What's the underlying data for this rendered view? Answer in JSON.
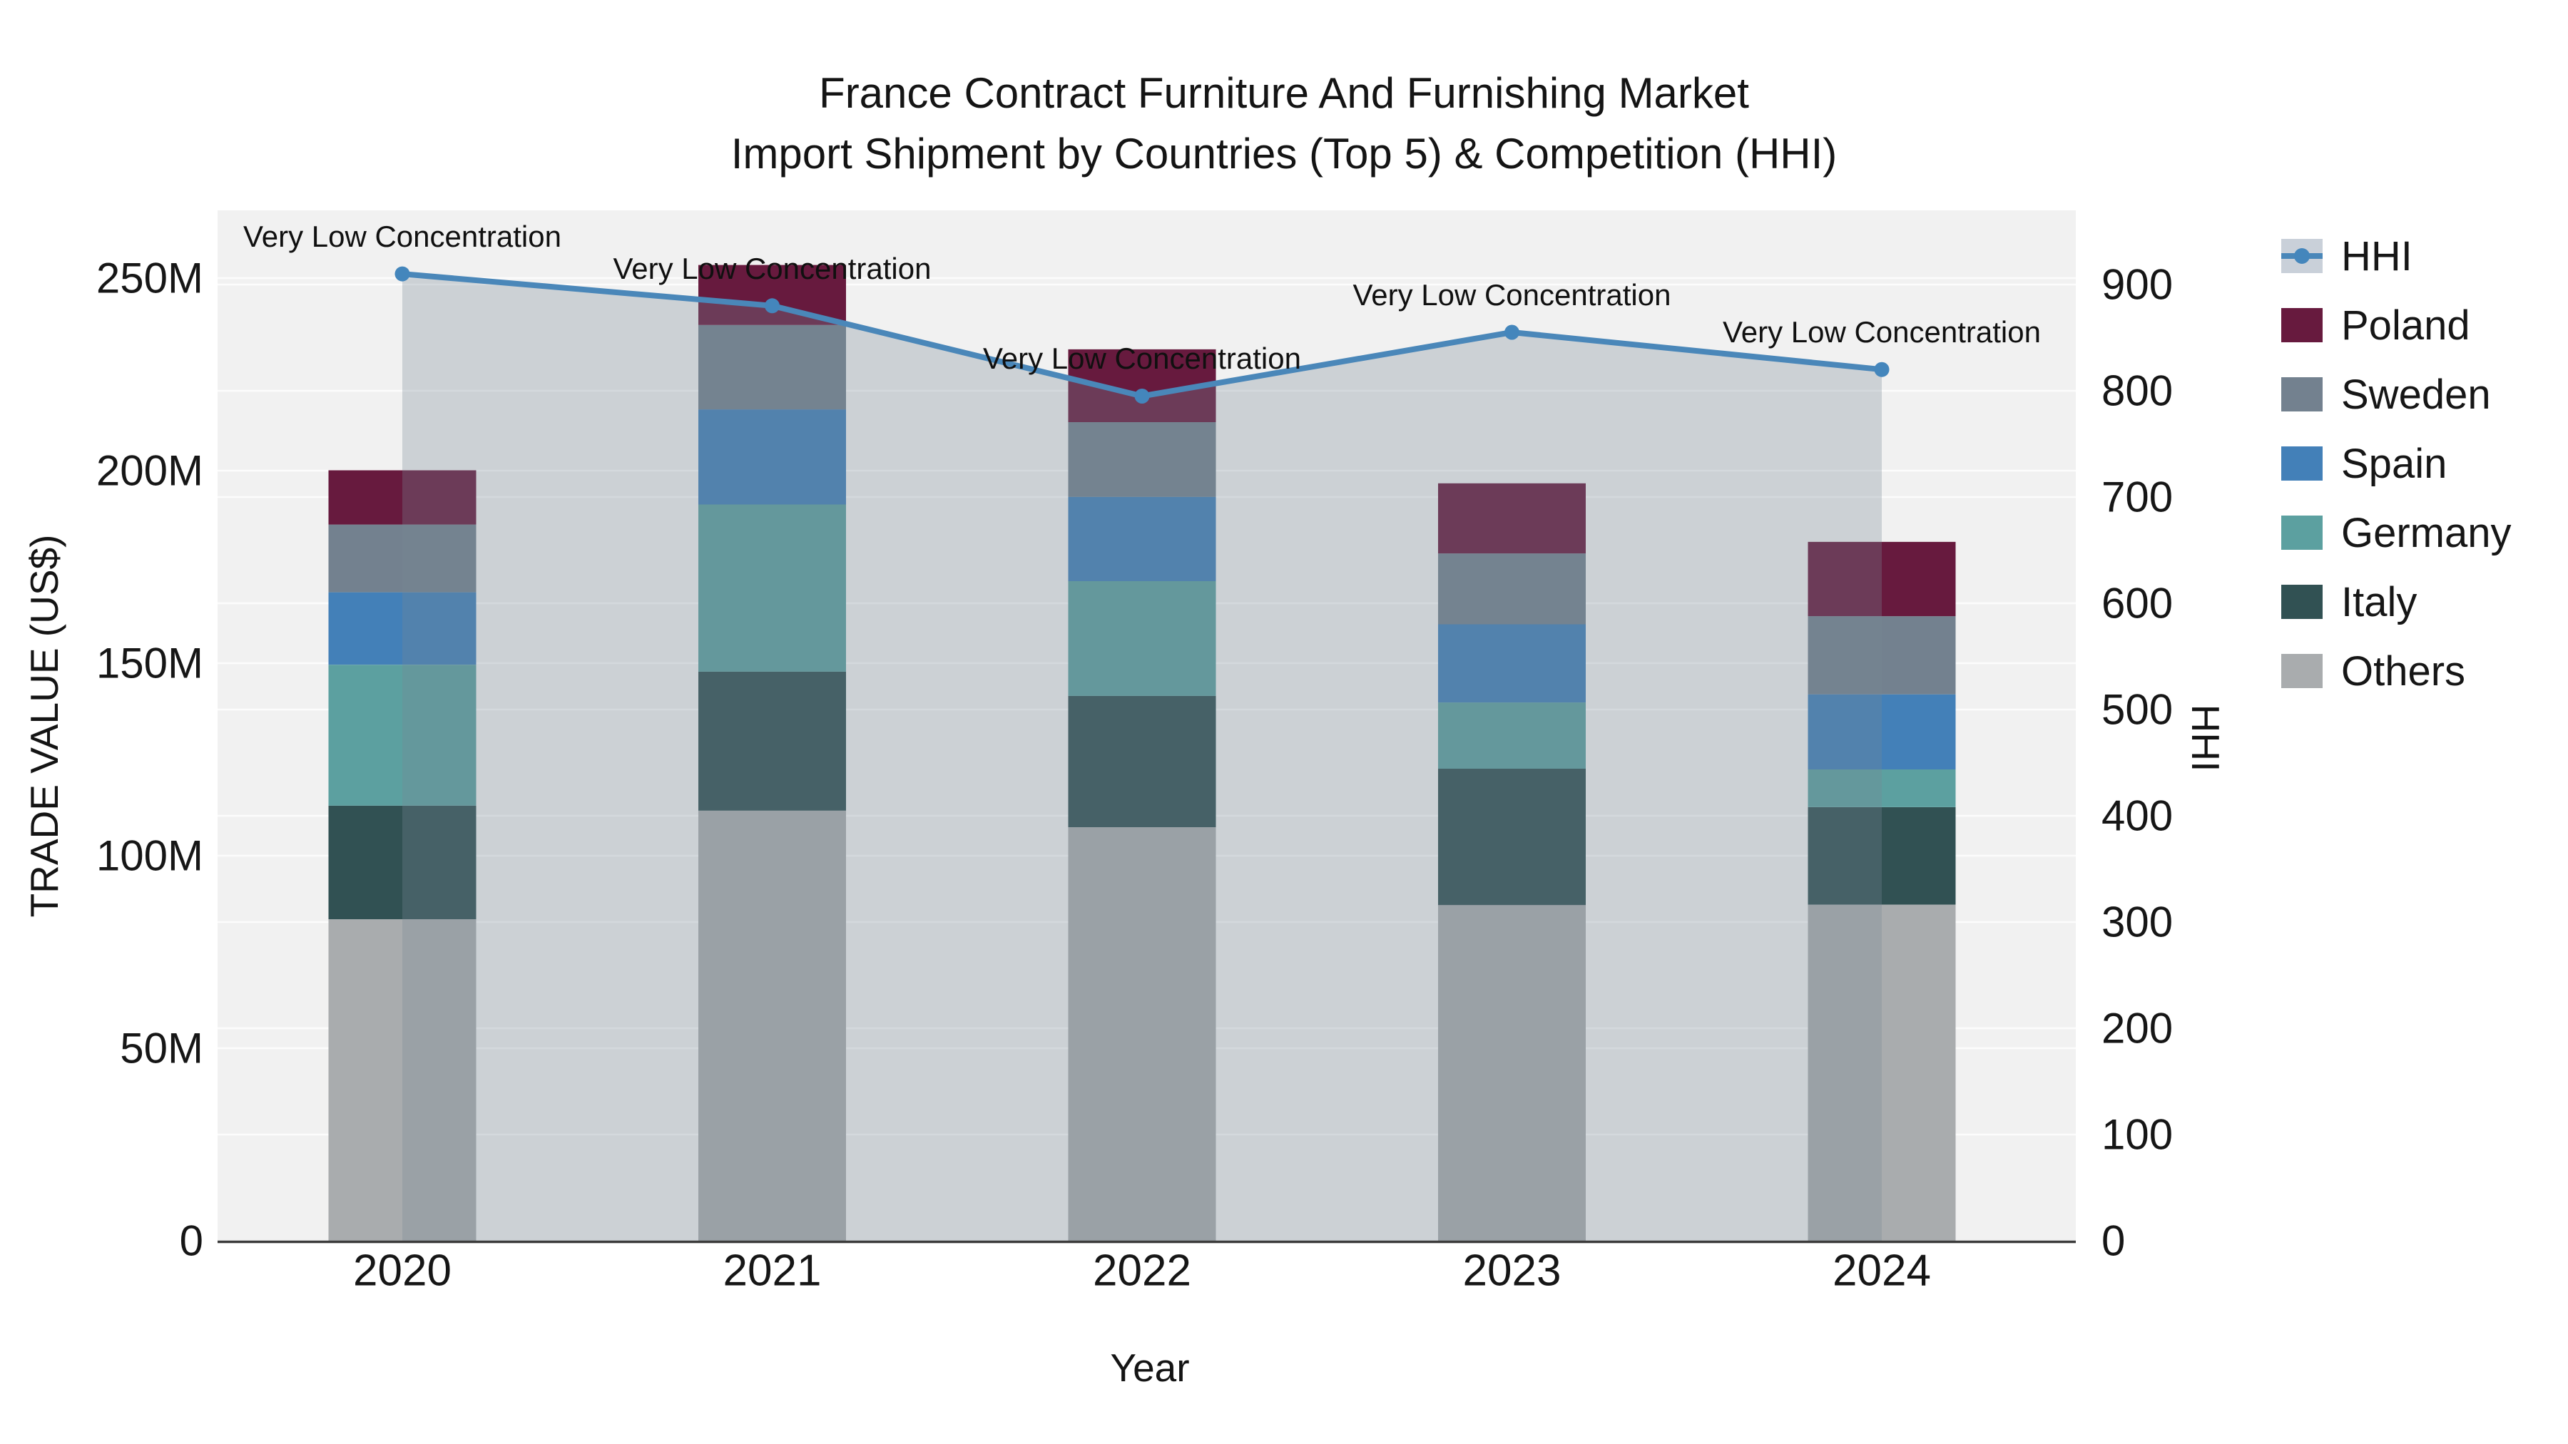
{
  "title": {
    "line1": "France Contract Furniture And Furnishing Market",
    "line2": "Import Shipment by Countries (Top 5) & Competition (HHI)"
  },
  "axes": {
    "x": {
      "title": "Year",
      "categories": [
        "2020",
        "2021",
        "2022",
        "2023",
        "2024"
      ]
    },
    "y_left": {
      "title": "TRADE VALUE (US$)",
      "tick_labels": [
        "0",
        "50M",
        "100M",
        "150M",
        "200M",
        "250M"
      ],
      "tick_values_musd": [
        0,
        50,
        100,
        150,
        200,
        250
      ]
    },
    "y_right": {
      "title": "HHI",
      "tick_labels": [
        "0",
        "100",
        "200",
        "300",
        "400",
        "500",
        "600",
        "700",
        "800",
        "900"
      ],
      "tick_values": [
        0,
        100,
        200,
        300,
        400,
        500,
        600,
        700,
        800,
        900
      ]
    }
  },
  "chart_data": {
    "type": "combo: stacked bar (left axis) + line with markers and translucent area fill (right axis)",
    "categories": [
      "2020",
      "2021",
      "2022",
      "2023",
      "2024"
    ],
    "bar_value_unit": "million US$ trade value",
    "stack_order_bottom_to_top": [
      "Others",
      "Italy",
      "Germany",
      "Spain",
      "Sweden",
      "Poland"
    ],
    "series": [
      {
        "name": "Others",
        "color": "#a9acae",
        "values": [
          83.5,
          111.7,
          107.4,
          87.2,
          87.3
        ]
      },
      {
        "name": "Italy",
        "color": "#315153",
        "values": [
          29.5,
          36.1,
          34.1,
          35.4,
          25.3
        ]
      },
      {
        "name": "Germany",
        "color": "#5ca0a0",
        "values": [
          36.6,
          43.4,
          29.8,
          17.2,
          9.8
        ]
      },
      {
        "name": "Spain",
        "color": "#4380b8",
        "values": [
          18.8,
          24.7,
          21.9,
          20.3,
          19.5
        ]
      },
      {
        "name": "Sweden",
        "color": "#73818f",
        "values": [
          17.6,
          21.9,
          19.4,
          18.4,
          20.3
        ]
      },
      {
        "name": "Poland",
        "color": "#671a3e",
        "values": [
          14.1,
          15.6,
          18.9,
          18.2,
          19.3
        ]
      }
    ],
    "bar_totals_musd": [
      200.1,
      253.4,
      231.5,
      196.7,
      181.5
    ],
    "line": {
      "name": "HHI",
      "axis": "right",
      "values": [
        910,
        880,
        795,
        855,
        820
      ]
    },
    "annotations": [
      {
        "x": "2020",
        "text": "Very Low Concentration"
      },
      {
        "x": "2021",
        "text": "Very Low Concentration"
      },
      {
        "x": "2022",
        "text": "Very Low Concentration"
      },
      {
        "x": "2023",
        "text": "Very Low Concentration"
      },
      {
        "x": "2024",
        "text": "Very Low Concentration"
      }
    ],
    "ylim_left_musd": [
      0,
      268
    ],
    "ylim_right": [
      0,
      970
    ],
    "grid": true,
    "legend_position": "right of plot"
  },
  "legend": {
    "items": [
      {
        "label": "HHI",
        "type": "line"
      },
      {
        "label": "Poland",
        "type": "bar",
        "color": "#671a3e"
      },
      {
        "label": "Sweden",
        "type": "bar",
        "color": "#73818f"
      },
      {
        "label": "Spain",
        "type": "bar",
        "color": "#4380b8"
      },
      {
        "label": "Germany",
        "type": "bar",
        "color": "#5ca0a0"
      },
      {
        "label": "Italy",
        "type": "bar",
        "color": "#315153"
      },
      {
        "label": "Others",
        "type": "bar",
        "color": "#a9acae"
      }
    ]
  },
  "colors": {
    "plot_background": "#f1f1f1",
    "gridline": "#ffffff",
    "axis_line": "#3c3c3c",
    "text": "#1a1a1a",
    "hhi_line": "#4a87b9",
    "hhi_marker": "#4486bc",
    "hhi_area_fill": "rgba(120,135,150,0.30)"
  }
}
